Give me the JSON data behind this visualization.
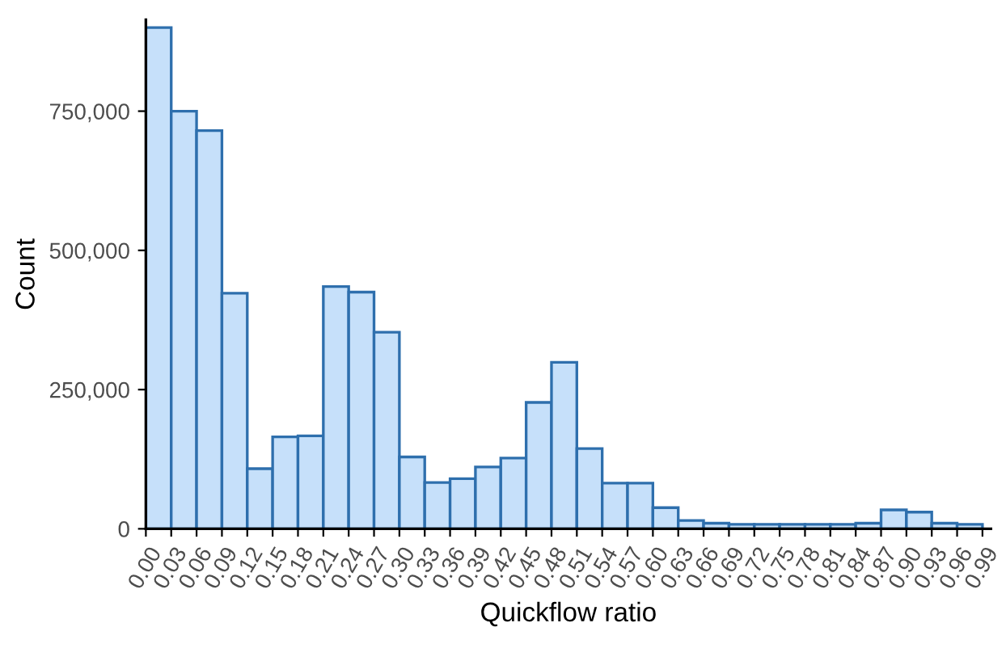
{
  "chart_data": {
    "type": "histogram",
    "xlabel": "Quickflow ratio",
    "ylabel": "Count",
    "bins": [
      0,
      0.03,
      0.06,
      0.09,
      0.12,
      0.15,
      0.18,
      0.21,
      0.24,
      0.27,
      0.3,
      0.33,
      0.36,
      0.39,
      0.42,
      0.45,
      0.48,
      0.51,
      0.54,
      0.57,
      0.6,
      0.63,
      0.66,
      0.69,
      0.72,
      0.75,
      0.78,
      0.81,
      0.84,
      0.87,
      0.9,
      0.93,
      0.96,
      0.99
    ],
    "values": [
      900000,
      750000,
      715000,
      423000,
      108000,
      165000,
      167000,
      435000,
      425000,
      353000,
      129000,
      83000,
      90000,
      111000,
      127000,
      227000,
      299000,
      144000,
      82000,
      82000,
      38000,
      15000,
      10000,
      8000,
      8000,
      8000,
      8000,
      8000,
      10000,
      34000,
      30000,
      10000,
      8000
    ],
    "color": "#c6e0fa",
    "xlim": [
      0,
      1.0
    ],
    "ylim": [
      0,
      914000
    ],
    "xticks": [
      {
        "value": 0,
        "label": "0.00"
      },
      {
        "value": 0.03,
        "label": "0.03"
      },
      {
        "value": 0.06,
        "label": "0.06"
      },
      {
        "value": 0.09,
        "label": "0.09"
      },
      {
        "value": 0.12,
        "label": "0.12"
      },
      {
        "value": 0.15,
        "label": "0.15"
      },
      {
        "value": 0.18,
        "label": "0.18"
      },
      {
        "value": 0.21,
        "label": "0.21"
      },
      {
        "value": 0.24,
        "label": "0.24"
      },
      {
        "value": 0.27,
        "label": "0.27"
      },
      {
        "value": 0.3,
        "label": "0.30"
      },
      {
        "value": 0.33,
        "label": "0.33"
      },
      {
        "value": 0.36,
        "label": "0.36"
      },
      {
        "value": 0.39,
        "label": "0.39"
      },
      {
        "value": 0.42,
        "label": "0.42"
      },
      {
        "value": 0.45,
        "label": "0.45"
      },
      {
        "value": 0.48,
        "label": "0.48"
      },
      {
        "value": 0.51,
        "label": "0.51"
      },
      {
        "value": 0.54,
        "label": "0.54"
      },
      {
        "value": 0.57,
        "label": "0.57"
      },
      {
        "value": 0.6,
        "label": "0.60"
      },
      {
        "value": 0.63,
        "label": "0.63"
      },
      {
        "value": 0.66,
        "label": "0.66"
      },
      {
        "value": 0.69,
        "label": "0.69"
      },
      {
        "value": 0.72,
        "label": "0.72"
      },
      {
        "value": 0.75,
        "label": "0.75"
      },
      {
        "value": 0.78,
        "label": "0.78"
      },
      {
        "value": 0.81,
        "label": "0.81"
      },
      {
        "value": 0.84,
        "label": "0.84"
      },
      {
        "value": 0.87,
        "label": "0.87"
      },
      {
        "value": 0.9,
        "label": "0.90"
      },
      {
        "value": 0.93,
        "label": "0.93"
      },
      {
        "value": 0.96,
        "label": "0.96"
      },
      {
        "value": 0.99,
        "label": "0.99"
      }
    ],
    "yticks": [
      0,
      {
        "value": 250000,
        "label": "250,000"
      },
      {
        "value": 500000,
        "label": "500,000"
      },
      {
        "value": 750000,
        "label": "750,000"
      }
    ],
    "grid": false,
    "legend": false
  }
}
